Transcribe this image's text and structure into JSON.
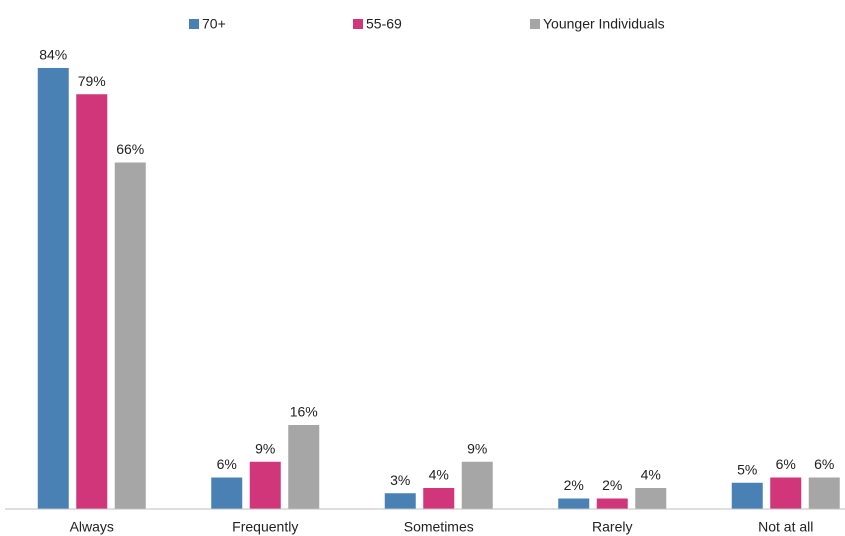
{
  "chart_data": {
    "type": "bar",
    "categories": [
      "Always",
      "Frequently",
      "Sometimes",
      "Rarely",
      "Not at all"
    ],
    "series": [
      {
        "name": "70+",
        "color": "#4a81b5",
        "values": [
          84,
          6,
          3,
          2,
          5
        ],
        "value_labels": [
          "84%",
          "6%",
          "3%",
          "2%",
          "5%"
        ]
      },
      {
        "name": "55-69",
        "color": "#d1357a",
        "values": [
          79,
          9,
          4,
          2,
          6
        ],
        "value_labels": [
          "79%",
          "9%",
          "4%",
          "2%",
          "6%"
        ]
      },
      {
        "name": "Younger Individuals",
        "color": "#a6a6a6",
        "values": [
          66,
          16,
          9,
          4,
          6
        ],
        "value_labels": [
          "66%",
          "16%",
          "9%",
          "4%",
          "6%"
        ]
      }
    ]
  }
}
